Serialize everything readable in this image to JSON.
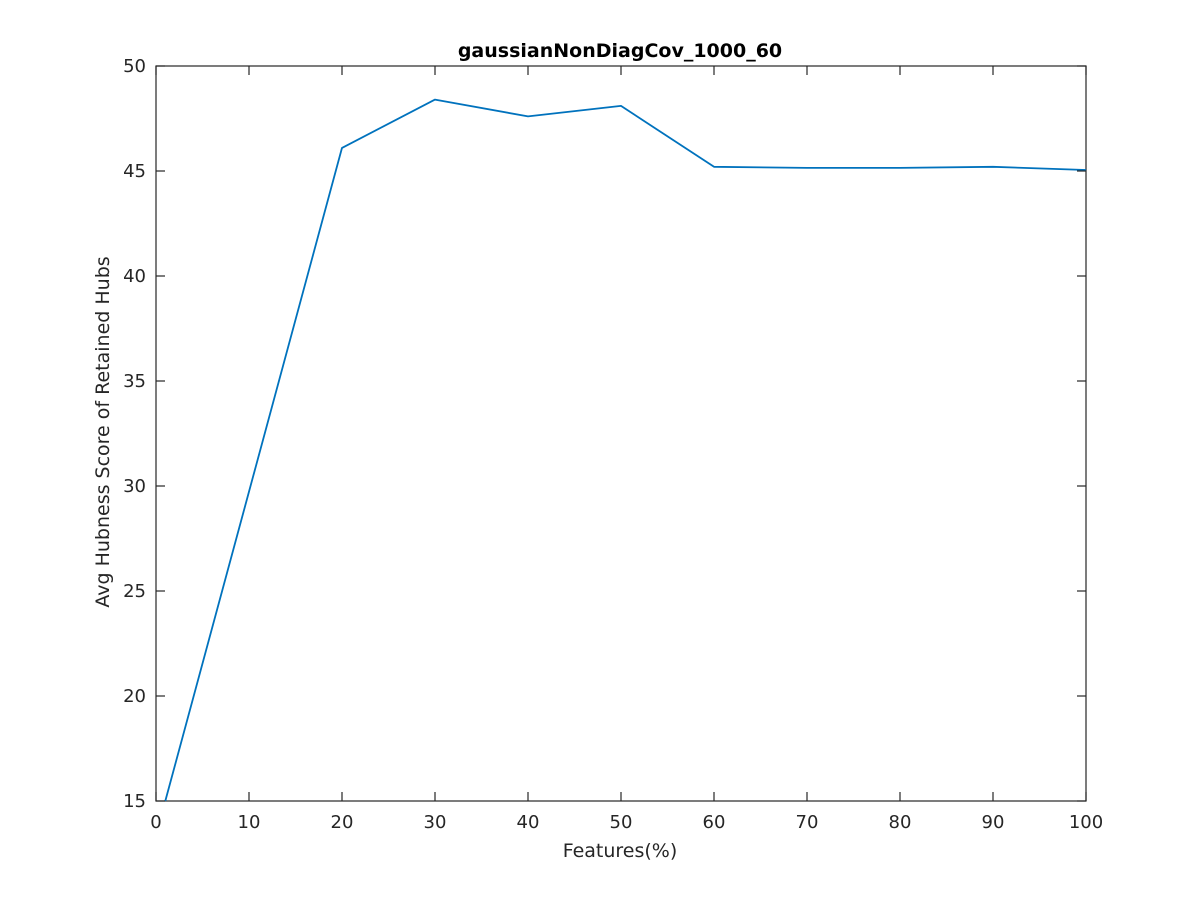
{
  "chart_data": {
    "type": "line",
    "title": "gaussianNonDiagCov_1000_60",
    "xlabel": "Features(%)",
    "ylabel": "Avg Hubness Score of Retained Hubs",
    "xlim": [
      0,
      100
    ],
    "ylim": [
      15,
      50
    ],
    "xticks": [
      0,
      10,
      20,
      30,
      40,
      50,
      60,
      70,
      80,
      90,
      100
    ],
    "yticks": [
      15,
      20,
      25,
      30,
      35,
      40,
      45,
      50
    ],
    "xtick_labels": [
      "0",
      "10",
      "20",
      "30",
      "40",
      "50",
      "60",
      "70",
      "80",
      "90",
      "100"
    ],
    "ytick_labels": [
      "15",
      "20",
      "25",
      "30",
      "35",
      "40",
      "45",
      "50"
    ],
    "grid": false,
    "series": [
      {
        "color": "#0072BD",
        "x": [
          1,
          20,
          30,
          40,
          50,
          60,
          70,
          80,
          90,
          100
        ],
        "y": [
          15.0,
          46.1,
          48.4,
          47.6,
          48.1,
          45.2,
          45.15,
          45.15,
          45.2,
          45.05
        ]
      }
    ]
  }
}
